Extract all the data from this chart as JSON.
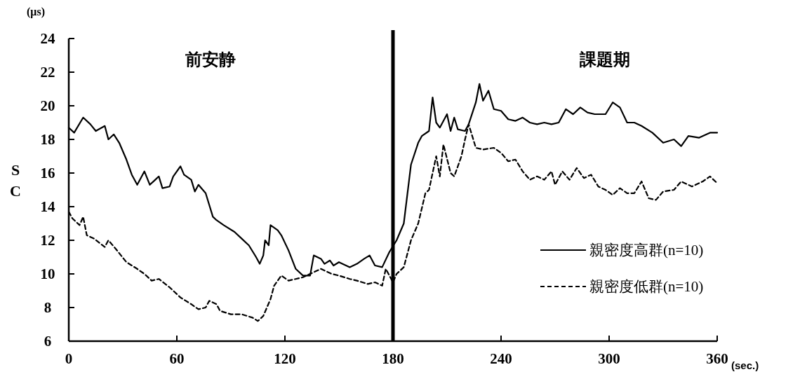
{
  "chart_data": {
    "type": "line",
    "xlabel": "(sec.)",
    "ylabel": "SC",
    "xlim": [
      0,
      360
    ],
    "xticks": [
      0,
      60,
      120,
      180,
      240,
      300,
      360
    ],
    "ylim": [
      6,
      24
    ],
    "yticks": [
      6,
      8,
      10,
      12,
      14,
      16,
      18,
      20,
      22,
      24
    ],
    "legend": "right",
    "grid": false,
    "marker": "none",
    "ref_lines": [
      {
        "axis": "x",
        "value": 180,
        "color": "#000000"
      }
    ],
    "annotations": [
      "前安静",
      "課題期",
      "(μs)"
    ],
    "series": [
      {
        "name": "親密度高群(n=10)",
        "color": "#000000",
        "line_style": "solid",
        "x": [
          0,
          3,
          8,
          12,
          15,
          20,
          22,
          25,
          28,
          32,
          35,
          38,
          42,
          45,
          48,
          50,
          52,
          56,
          58,
          62,
          64,
          68,
          70,
          72,
          76,
          80,
          82,
          86,
          92,
          96,
          100,
          104,
          106,
          108,
          109,
          111,
          112,
          116,
          118,
          122,
          126,
          130,
          134,
          136,
          140,
          142,
          145,
          147,
          150,
          156,
          160,
          164,
          167,
          170,
          174,
          178,
          182,
          186,
          190,
          194,
          196,
          200,
          202,
          204,
          206,
          210,
          212,
          214,
          216,
          220,
          222,
          226,
          228,
          230,
          233,
          236,
          240,
          244,
          248,
          252,
          256,
          260,
          264,
          268,
          272,
          276,
          280,
          284,
          288,
          292,
          298,
          302,
          306,
          310,
          314,
          318,
          324,
          330,
          336,
          340,
          344,
          350,
          356,
          360
        ],
        "values": [
          18.7,
          18.4,
          19.3,
          18.9,
          18.5,
          18.8,
          18.0,
          18.3,
          17.8,
          16.8,
          15.9,
          15.3,
          16.1,
          15.3,
          15.6,
          15.8,
          15.1,
          15.2,
          15.8,
          16.4,
          15.9,
          15.6,
          14.9,
          15.3,
          14.8,
          13.4,
          13.2,
          12.9,
          12.5,
          12.1,
          11.7,
          11.0,
          10.6,
          11.1,
          12.0,
          11.7,
          12.9,
          12.6,
          12.3,
          11.4,
          10.3,
          9.9,
          9.9,
          11.1,
          10.9,
          10.6,
          10.8,
          10.5,
          10.7,
          10.4,
          10.6,
          10.9,
          11.1,
          10.5,
          10.4,
          11.3,
          12.0,
          13.0,
          16.5,
          17.8,
          18.2,
          18.5,
          20.5,
          19.0,
          18.7,
          19.5,
          18.5,
          19.3,
          18.6,
          18.5,
          18.9,
          20.2,
          21.3,
          20.3,
          20.9,
          19.8,
          19.7,
          19.2,
          19.1,
          19.3,
          19.0,
          18.9,
          19.0,
          18.9,
          19.0,
          19.8,
          19.5,
          19.9,
          19.6,
          19.5,
          19.5,
          20.2,
          19.9,
          19.0,
          19.0,
          18.8,
          18.4,
          17.8,
          18.0,
          17.6,
          18.2,
          18.1,
          18.4,
          18.4
        ]
      },
      {
        "name": "親密度低群(n=10)",
        "color": "#000000",
        "line_style": "dashed",
        "x": [
          0,
          2,
          6,
          8,
          10,
          14,
          20,
          22,
          26,
          32,
          38,
          42,
          46,
          50,
          56,
          62,
          68,
          72,
          76,
          78,
          82,
          84,
          90,
          96,
          102,
          105,
          108,
          112,
          114,
          118,
          122,
          126,
          130,
          134,
          140,
          146,
          150,
          156,
          160,
          166,
          170,
          174,
          176,
          180,
          182,
          186,
          190,
          194,
          198,
          200,
          204,
          206,
          208,
          212,
          214,
          218,
          220,
          222,
          226,
          230,
          236,
          240,
          244,
          248,
          252,
          256,
          260,
          264,
          268,
          270,
          274,
          278,
          282,
          286,
          290,
          294,
          298,
          302,
          306,
          310,
          314,
          318,
          322,
          326,
          330,
          336,
          340,
          346,
          352,
          356,
          360
        ],
        "values": [
          13.7,
          13.3,
          12.9,
          13.4,
          12.3,
          12.1,
          11.6,
          12.0,
          11.5,
          10.7,
          10.3,
          10.0,
          9.6,
          9.7,
          9.2,
          8.6,
          8.2,
          7.9,
          8.0,
          8.4,
          8.2,
          7.8,
          7.6,
          7.6,
          7.4,
          7.2,
          7.5,
          8.5,
          9.3,
          9.9,
          9.6,
          9.7,
          9.8,
          10.0,
          10.3,
          10.0,
          9.9,
          9.7,
          9.6,
          9.4,
          9.5,
          9.3,
          10.3,
          9.5,
          10.0,
          10.4,
          12.0,
          13.0,
          14.8,
          15.0,
          17.0,
          15.8,
          17.7,
          16.0,
          15.8,
          17.0,
          18.0,
          18.9,
          17.5,
          17.4,
          17.5,
          17.2,
          16.7,
          16.8,
          16.1,
          15.6,
          15.8,
          15.6,
          16.1,
          15.3,
          16.1,
          15.6,
          16.3,
          15.7,
          15.9,
          15.2,
          15.0,
          14.7,
          15.1,
          14.8,
          14.8,
          15.5,
          14.5,
          14.4,
          14.9,
          15.0,
          15.5,
          15.2,
          15.5,
          15.8,
          15.4
        ]
      }
    ]
  }
}
